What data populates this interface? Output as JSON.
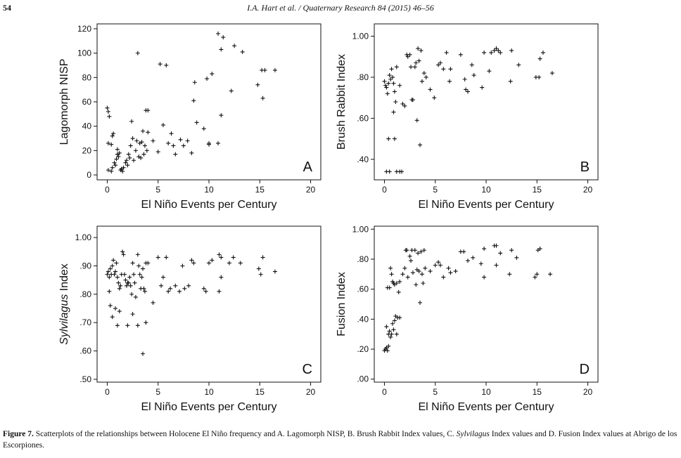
{
  "header": {
    "page_number": "54",
    "running_head": "I.A. Hart et al. / Quaternary Research 84 (2015) 46–56"
  },
  "caption": {
    "label": "Figure 7.",
    "text_before": " Scatterplots of the relationships between Holocene El Niño frequency and A. Lagomorph NISP, B. Brush Rabbit Index values, C. ",
    "italic": "Sylvilagus",
    "text_after": " Index values and D. Fusion Index values at Abrigo de los Escorpiones."
  },
  "chart_data": [
    {
      "type": "scatter",
      "panel_letter": "A",
      "xlabel": "El Niño Events per Century",
      "ylabel": "Lagomorph NISP",
      "xlim": [
        -1,
        21
      ],
      "ylim": [
        -4,
        124
      ],
      "xticks": [
        0,
        5,
        10,
        15,
        20
      ],
      "yticks": [
        0,
        20,
        40,
        60,
        80,
        100,
        120
      ],
      "ytick_labels": [
        "0",
        "20",
        "40",
        "60",
        "80",
        "100",
        "120"
      ],
      "grid": false,
      "marker": "+",
      "points": [
        [
          0,
          55
        ],
        [
          0.1,
          52
        ],
        [
          0.2,
          48
        ],
        [
          0.1,
          26
        ],
        [
          0.6,
          34
        ],
        [
          0.5,
          32
        ],
        [
          0.4,
          25
        ],
        [
          0.1,
          4
        ],
        [
          0.4,
          3
        ],
        [
          0.5,
          6
        ],
        [
          0.7,
          10
        ],
        [
          0.8,
          8
        ],
        [
          0.9,
          13
        ],
        [
          1,
          17
        ],
        [
          1,
          21
        ],
        [
          1.1,
          15
        ],
        [
          1.2,
          18
        ],
        [
          1.3,
          4
        ],
        [
          1.4,
          5
        ],
        [
          1.5,
          3
        ],
        [
          1.6,
          6
        ],
        [
          1.8,
          10
        ],
        [
          1.9,
          12
        ],
        [
          2,
          8
        ],
        [
          2.1,
          17
        ],
        [
          2.2,
          14
        ],
        [
          2.3,
          24
        ],
        [
          2.4,
          44
        ],
        [
          2.5,
          30
        ],
        [
          2.6,
          12
        ],
        [
          2.8,
          20
        ],
        [
          2.9,
          28
        ],
        [
          3,
          100
        ],
        [
          3.1,
          15
        ],
        [
          3.2,
          26
        ],
        [
          3.3,
          14
        ],
        [
          3.4,
          27
        ],
        [
          3.5,
          36
        ],
        [
          3.6,
          17
        ],
        [
          3.7,
          24
        ],
        [
          3.8,
          53
        ],
        [
          3.9,
          20
        ],
        [
          4,
          53
        ],
        [
          4,
          35
        ],
        [
          4.5,
          28
        ],
        [
          5,
          19
        ],
        [
          5.2,
          91
        ],
        [
          5.5,
          41
        ],
        [
          5.8,
          90
        ],
        [
          6,
          26
        ],
        [
          6.3,
          34
        ],
        [
          6.5,
          24
        ],
        [
          6.7,
          17
        ],
        [
          7.2,
          29
        ],
        [
          7.5,
          24
        ],
        [
          7.9,
          28
        ],
        [
          8.3,
          18
        ],
        [
          8.5,
          61
        ],
        [
          8.6,
          76
        ],
        [
          8.8,
          43
        ],
        [
          9.5,
          38
        ],
        [
          9.8,
          79
        ],
        [
          10,
          26
        ],
        [
          10,
          25
        ],
        [
          10.3,
          83
        ],
        [
          10.9,
          26
        ],
        [
          10.9,
          116
        ],
        [
          11.2,
          103
        ],
        [
          11.2,
          49
        ],
        [
          11.4,
          113
        ],
        [
          12.2,
          69
        ],
        [
          12.5,
          106
        ],
        [
          13.3,
          101
        ],
        [
          14.8,
          74
        ],
        [
          15.2,
          86
        ],
        [
          15.5,
          86
        ],
        [
          15.3,
          63
        ],
        [
          16.5,
          86
        ]
      ]
    },
    {
      "type": "scatter",
      "panel_letter": "B",
      "xlabel": "El Niño Events per Century",
      "ylabel": "Brush Rabbit Index",
      "xlim": [
        -1,
        21
      ],
      "ylim": [
        0.3,
        1.06
      ],
      "xticks": [
        0,
        5,
        10,
        15,
        20
      ],
      "yticks": [
        0.4,
        0.6,
        0.8,
        1.0
      ],
      "ytick_labels": [
        ".40",
        ".60",
        ".80",
        "1.00"
      ],
      "grid": false,
      "marker": "+",
      "points": [
        [
          0,
          0.78
        ],
        [
          0.1,
          0.76
        ],
        [
          0.2,
          0.75
        ],
        [
          0.3,
          0.72
        ],
        [
          0.4,
          0.77
        ],
        [
          0.5,
          0.81
        ],
        [
          0.6,
          0.79
        ],
        [
          0.7,
          0.84
        ],
        [
          0.8,
          0.8
        ],
        [
          0.9,
          0.77
        ],
        [
          1,
          0.73
        ],
        [
          1.1,
          0.68
        ],
        [
          1.2,
          0.85
        ],
        [
          0.2,
          0.34
        ],
        [
          0.5,
          0.34
        ],
        [
          1.2,
          0.34
        ],
        [
          1.5,
          0.34
        ],
        [
          1.7,
          0.34
        ],
        [
          0.4,
          0.5
        ],
        [
          1,
          0.5
        ],
        [
          0.9,
          0.63
        ],
        [
          1.5,
          0.76
        ],
        [
          1.8,
          0.67
        ],
        [
          2,
          0.66
        ],
        [
          2.2,
          0.91
        ],
        [
          2.3,
          0.9
        ],
        [
          2.5,
          0.91
        ],
        [
          2.6,
          0.85
        ],
        [
          2.7,
          0.69
        ],
        [
          2.8,
          0.69
        ],
        [
          3,
          0.85
        ],
        [
          3.1,
          0.87
        ],
        [
          3.2,
          0.59
        ],
        [
          3.3,
          0.94
        ],
        [
          3.4,
          0.88
        ],
        [
          3.5,
          0.47
        ],
        [
          3.6,
          0.93
        ],
        [
          3.7,
          0.78
        ],
        [
          3.9,
          0.82
        ],
        [
          4.1,
          0.8
        ],
        [
          4.5,
          0.74
        ],
        [
          4.9,
          0.7
        ],
        [
          5.3,
          0.86
        ],
        [
          5.5,
          0.87
        ],
        [
          5.8,
          0.84
        ],
        [
          6.1,
          0.92
        ],
        [
          6.4,
          0.78
        ],
        [
          6.5,
          0.84
        ],
        [
          7.5,
          0.91
        ],
        [
          7.9,
          0.79
        ],
        [
          8,
          0.74
        ],
        [
          8.2,
          0.73
        ],
        [
          8.6,
          0.86
        ],
        [
          8.8,
          0.81
        ],
        [
          9.6,
          0.75
        ],
        [
          9.8,
          0.92
        ],
        [
          10.3,
          0.83
        ],
        [
          10.5,
          0.92
        ],
        [
          10.8,
          0.93
        ],
        [
          11,
          0.94
        ],
        [
          11.2,
          0.93
        ],
        [
          11.4,
          0.92
        ],
        [
          12.4,
          0.78
        ],
        [
          12.5,
          0.93
        ],
        [
          13.2,
          0.86
        ],
        [
          14.9,
          0.8
        ],
        [
          15.2,
          0.8
        ],
        [
          15.3,
          0.89
        ],
        [
          15.6,
          0.92
        ],
        [
          16.5,
          0.82
        ]
      ]
    },
    {
      "type": "scatter",
      "panel_letter": "C",
      "xlabel": "El Niño Events per Century",
      "ylabel_italic": "Sylvilagus",
      "ylabel": " Index",
      "xlim": [
        -1,
        21
      ],
      "ylim": [
        0.49,
        1.04
      ],
      "xticks": [
        0,
        5,
        10,
        15,
        20
      ],
      "yticks": [
        0.5,
        0.6,
        0.7,
        0.8,
        0.9,
        1.0
      ],
      "ytick_labels": [
        ".50",
        ".60",
        ".70",
        ".80",
        ".90",
        "1.00"
      ],
      "grid": false,
      "marker": "+",
      "points": [
        [
          0,
          0.87
        ],
        [
          0.1,
          0.88
        ],
        [
          0.2,
          0.86
        ],
        [
          0.3,
          0.89
        ],
        [
          0.4,
          0.87
        ],
        [
          0.5,
          0.9
        ],
        [
          0.6,
          0.92
        ],
        [
          0.7,
          0.87
        ],
        [
          0.8,
          0.88
        ],
        [
          0.9,
          0.91
        ],
        [
          1,
          0.86
        ],
        [
          1.1,
          0.84
        ],
        [
          1.2,
          0.82
        ],
        [
          1.3,
          0.83
        ],
        [
          1.4,
          0.87
        ],
        [
          1.5,
          0.95
        ],
        [
          1.6,
          0.94
        ],
        [
          1.7,
          0.87
        ],
        [
          1.8,
          0.85
        ],
        [
          1.9,
          0.83
        ],
        [
          2,
          0.84
        ],
        [
          2.1,
          0.84
        ],
        [
          2.2,
          0.86
        ],
        [
          2.3,
          0.83
        ],
        [
          2.4,
          0.8
        ],
        [
          2.5,
          0.91
        ],
        [
          2.6,
          0.87
        ],
        [
          2.7,
          0.84
        ],
        [
          2.8,
          0.79
        ],
        [
          3,
          0.94
        ],
        [
          3.1,
          0.9
        ],
        [
          3.2,
          0.87
        ],
        [
          3.3,
          0.82
        ],
        [
          3.4,
          0.86
        ],
        [
          3.5,
          0.89
        ],
        [
          3.6,
          0.82
        ],
        [
          3.7,
          0.81
        ],
        [
          3.8,
          0.91
        ],
        [
          4,
          0.91
        ],
        [
          0.2,
          0.81
        ],
        [
          0.3,
          0.76
        ],
        [
          0.5,
          0.72
        ],
        [
          0.8,
          0.75
        ],
        [
          1.2,
          0.74
        ],
        [
          1,
          0.69
        ],
        [
          2,
          0.69
        ],
        [
          2.5,
          0.73
        ],
        [
          3,
          0.69
        ],
        [
          3.5,
          0.59
        ],
        [
          3.8,
          0.7
        ],
        [
          4.5,
          0.77
        ],
        [
          5,
          0.93
        ],
        [
          5.3,
          0.83
        ],
        [
          5.5,
          0.86
        ],
        [
          5.8,
          0.93
        ],
        [
          6,
          0.81
        ],
        [
          6.2,
          0.82
        ],
        [
          6.7,
          0.83
        ],
        [
          7.1,
          0.81
        ],
        [
          7.4,
          0.9
        ],
        [
          7.6,
          0.82
        ],
        [
          8,
          0.83
        ],
        [
          8.3,
          0.92
        ],
        [
          8.5,
          0.91
        ],
        [
          9.5,
          0.82
        ],
        [
          9.7,
          0.81
        ],
        [
          10,
          0.91
        ],
        [
          10.3,
          0.92
        ],
        [
          11,
          0.94
        ],
        [
          11.2,
          0.93
        ],
        [
          11,
          0.81
        ],
        [
          11.2,
          0.86
        ],
        [
          12,
          0.91
        ],
        [
          12.4,
          0.93
        ],
        [
          13.1,
          0.91
        ],
        [
          14.9,
          0.89
        ],
        [
          15.1,
          0.87
        ],
        [
          15.3,
          0.93
        ],
        [
          16.5,
          0.88
        ]
      ]
    },
    {
      "type": "scatter",
      "panel_letter": "D",
      "xlabel": "El Niño Events per Century",
      "ylabel": "Fusion Index",
      "xlim": [
        -1,
        21
      ],
      "ylim": [
        -0.02,
        1.02
      ],
      "xticks": [
        0,
        5,
        10,
        15,
        20
      ],
      "yticks": [
        0,
        0.2,
        0.4,
        0.6,
        0.8,
        1.0
      ],
      "ytick_labels": [
        ".00",
        ".20",
        ".40",
        ".60",
        ".80",
        "1.00"
      ],
      "grid": false,
      "marker": "+",
      "points": [
        [
          0,
          0.19
        ],
        [
          0.1,
          0.2
        ],
        [
          0.2,
          0.21
        ],
        [
          0.3,
          0.19
        ],
        [
          0.4,
          0.22
        ],
        [
          0.2,
          0.35
        ],
        [
          0.4,
          0.3
        ],
        [
          0.5,
          0.32
        ],
        [
          0.6,
          0.28
        ],
        [
          0.7,
          0.3
        ],
        [
          0.8,
          0.37
        ],
        [
          0.9,
          0.33
        ],
        [
          1,
          0.39
        ],
        [
          1.1,
          0.42
        ],
        [
          1.2,
          0.3
        ],
        [
          1.3,
          0.41
        ],
        [
          1.5,
          0.41
        ],
        [
          0.3,
          0.61
        ],
        [
          0.5,
          0.61
        ],
        [
          0.6,
          0.74
        ],
        [
          0.7,
          0.7
        ],
        [
          0.8,
          0.65
        ],
        [
          0.9,
          0.64
        ],
        [
          1,
          0.63
        ],
        [
          1.2,
          0.64
        ],
        [
          1.4,
          0.58
        ],
        [
          1.5,
          0.65
        ],
        [
          1.8,
          0.7
        ],
        [
          2,
          0.74
        ],
        [
          2.1,
          0.86
        ],
        [
          2.2,
          0.86
        ],
        [
          2.3,
          0.68
        ],
        [
          2.5,
          0.82
        ],
        [
          2.6,
          0.79
        ],
        [
          2.7,
          0.86
        ],
        [
          2.8,
          0.71
        ],
        [
          3,
          0.86
        ],
        [
          3.1,
          0.63
        ],
        [
          3.2,
          0.73
        ],
        [
          3.3,
          0.84
        ],
        [
          3.4,
          0.72
        ],
        [
          3.5,
          0.51
        ],
        [
          3.6,
          0.85
        ],
        [
          3.7,
          0.7
        ],
        [
          3.8,
          0.64
        ],
        [
          3.9,
          0.86
        ],
        [
          4,
          0.74
        ],
        [
          4.5,
          0.72
        ],
        [
          5,
          0.76
        ],
        [
          5.3,
          0.78
        ],
        [
          5.5,
          0.76
        ],
        [
          5.8,
          0.68
        ],
        [
          6.3,
          0.74
        ],
        [
          6.5,
          0.71
        ],
        [
          7,
          0.72
        ],
        [
          7.5,
          0.85
        ],
        [
          7.8,
          0.85
        ],
        [
          8.2,
          0.79
        ],
        [
          8.7,
          0.81
        ],
        [
          9.5,
          0.77
        ],
        [
          9.8,
          0.87
        ],
        [
          9.8,
          0.68
        ],
        [
          10.8,
          0.89
        ],
        [
          11,
          0.89
        ],
        [
          11,
          0.76
        ],
        [
          11.4,
          0.84
        ],
        [
          12.3,
          0.7
        ],
        [
          12.5,
          0.86
        ],
        [
          13,
          0.81
        ],
        [
          14.8,
          0.68
        ],
        [
          15,
          0.7
        ],
        [
          15.1,
          0.86
        ],
        [
          15.3,
          0.87
        ],
        [
          16.3,
          0.7
        ]
      ]
    }
  ]
}
